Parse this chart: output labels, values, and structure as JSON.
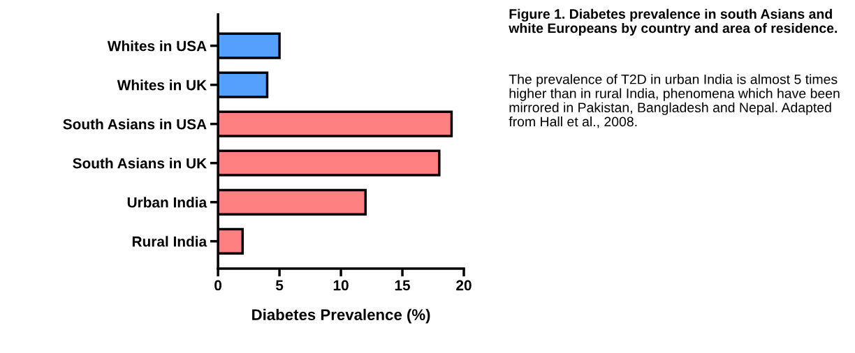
{
  "chart_data": {
    "type": "bar",
    "orientation": "horizontal",
    "categories": [
      "Whites in USA",
      "Whites in UK",
      "South Asians in USA",
      "South Asians in UK",
      "Urban India",
      "Rural India"
    ],
    "values": [
      5,
      4,
      19,
      18,
      12,
      2
    ],
    "colors": [
      "#559ffd",
      "#559ffd",
      "#fe8080",
      "#fe8080",
      "#fe8080",
      "#fe8080"
    ],
    "xlim": [
      0,
      20
    ],
    "xticks": [
      0,
      5,
      10,
      15,
      20
    ],
    "xlabel": "Diabetes Prevalence (%)",
    "title": "Figure 1. Diabetes prevalence in south Asians and white Europeans by country and area of residence.",
    "annotations": [
      "The prevalence of T2D in urban India is almost 5 times higher than in rural India, phenomena which have been mirrored in Pakistan, Bangladesh and Nepal. Adapted from Hall et al., 2008."
    ],
    "grid": false,
    "legend": false
  }
}
